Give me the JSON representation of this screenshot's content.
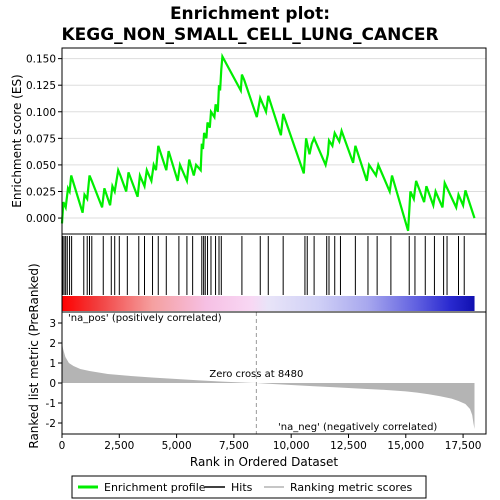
{
  "title_line1": "Enrichment plot:",
  "title_line2": "KEGG_NON_SMALL_CELL_LUNG_CANCER",
  "colors": {
    "es_line": "#00ee00",
    "hits": "#000000",
    "metric_fill": "#b4b4b4",
    "pos_label": "#cc0000",
    "neg_label": "#0000cc",
    "zero_line": "#999999",
    "frame": "#000000",
    "grid": "#dddddd"
  },
  "chart_data": [
    {
      "type": "line",
      "panel": "enrichment",
      "ylabel": "Enrichment score (ES)",
      "xlim": [
        0,
        18500
      ],
      "ylim": [
        -0.015,
        0.16
      ],
      "yticks": [
        0.0,
        0.025,
        0.05,
        0.075,
        0.1,
        0.125,
        0.15
      ],
      "ytick_labels": [
        "0.000",
        "0.025",
        "0.050",
        "0.075",
        "0.100",
        "0.125",
        "0.150"
      ],
      "grid": true,
      "series": [
        {
          "x": [
            0,
            60,
            160,
            260,
            330,
            400,
            900,
            980,
            1100,
            1200,
            1300,
            1750,
            1850,
            2100,
            2200,
            2300,
            2450,
            2550,
            2800,
            2900,
            3300,
            3400,
            3600,
            3700,
            3900,
            4000,
            4100,
            4200,
            4550,
            4650,
            5050,
            5150,
            5450,
            5550,
            5750,
            5850,
            6050,
            6100,
            6150,
            6200,
            6300,
            6350,
            6450,
            6500,
            6650,
            6700,
            6800,
            6850,
            6900,
            6950,
            7000,
            7800,
            7850,
            7950,
            8500,
            8650,
            8900,
            9000,
            9550,
            9650,
            10550,
            10650,
            10800,
            10900,
            11000,
            11500,
            11600,
            11650,
            11800,
            11900,
            12100,
            12200,
            12700,
            12800,
            13300,
            13400,
            13700,
            13800,
            14300,
            14400,
            15100,
            15200,
            15350,
            15450,
            15800,
            15900,
            16200,
            16300,
            16600,
            16700,
            17200,
            17300,
            17500,
            17600,
            18000
          ],
          "y": [
            -0.005,
            0.015,
            0.01,
            0.028,
            0.025,
            0.04,
            0.005,
            0.022,
            0.018,
            0.04,
            0.035,
            0.01,
            0.028,
            0.012,
            0.03,
            0.025,
            0.045,
            0.04,
            0.025,
            0.043,
            0.02,
            0.04,
            0.03,
            0.045,
            0.035,
            0.05,
            0.045,
            0.068,
            0.045,
            0.063,
            0.035,
            0.05,
            0.035,
            0.055,
            0.04,
            0.05,
            0.045,
            0.07,
            0.065,
            0.08,
            0.075,
            0.09,
            0.085,
            0.1,
            0.095,
            0.107,
            0.1,
            0.125,
            0.12,
            0.14,
            0.152,
            0.12,
            0.135,
            0.13,
            0.095,
            0.113,
            0.1,
            0.115,
            0.078,
            0.098,
            0.042,
            0.075,
            0.06,
            0.07,
            0.075,
            0.05,
            0.06,
            0.073,
            0.068,
            0.08,
            0.072,
            0.082,
            0.052,
            0.068,
            0.035,
            0.05,
            0.04,
            0.05,
            0.025,
            0.04,
            -0.012,
            0.025,
            0.018,
            0.035,
            0.015,
            0.03,
            0.012,
            0.025,
            0.01,
            0.033,
            0.01,
            0.022,
            0.012,
            0.026,
            0.0
          ]
        }
      ]
    },
    {
      "type": "bar",
      "panel": "hits",
      "xlim": [
        0,
        18500
      ],
      "hit_positions": [
        30,
        90,
        160,
        230,
        330,
        420,
        950,
        1100,
        1200,
        1300,
        1800,
        2150,
        2300,
        2500,
        2850,
        3350,
        3600,
        3950,
        4200,
        4550,
        5100,
        5450,
        5700,
        6100,
        6180,
        6250,
        6350,
        6500,
        6700,
        6850,
        6950,
        7850,
        8650,
        9000,
        9650,
        10600,
        10700,
        11000,
        11550,
        11650,
        11900,
        12150,
        12800,
        13350,
        13750,
        14350,
        15150,
        15400,
        15850,
        16250,
        16650,
        16800,
        17300,
        17550
      ]
    },
    {
      "type": "area",
      "panel": "ranked_metric",
      "ylabel": "Ranked list metric (PreRanked)",
      "xlabel": "Rank in Ordered Dataset",
      "xlim": [
        0,
        18500
      ],
      "ylim": [
        -2.55,
        3.55
      ],
      "yticks": [
        -2,
        -1,
        0,
        1,
        2,
        3
      ],
      "xticks": [
        0,
        2500,
        5000,
        7500,
        10000,
        12500,
        15000,
        17500
      ],
      "xtick_labels": [
        "0",
        "2,500",
        "5,000",
        "7,500",
        "10,000",
        "12,500",
        "15,000",
        "17,500"
      ],
      "x": [
        0,
        50,
        150,
        300,
        500,
        800,
        1200,
        2000,
        3000,
        4000,
        5000,
        6000,
        7000,
        8000,
        8480,
        9000,
        10000,
        11000,
        12000,
        13000,
        14000,
        15000,
        15500,
        16000,
        16500,
        17000,
        17300,
        17600,
        17800,
        17900,
        17950,
        18000
      ],
      "values": [
        2.0,
        1.7,
        1.3,
        1.0,
        0.85,
        0.7,
        0.6,
        0.45,
        0.35,
        0.27,
        0.2,
        0.13,
        0.07,
        0.02,
        0.0,
        -0.04,
        -0.1,
        -0.16,
        -0.22,
        -0.28,
        -0.34,
        -0.42,
        -0.48,
        -0.56,
        -0.66,
        -0.78,
        -0.9,
        -1.05,
        -1.3,
        -1.6,
        -2.0,
        -2.3
      ],
      "zero_cross_label": "Zero cross at 8480",
      "zero_cross": 8480,
      "pos_label": "'na_pos' (positively correlated)",
      "neg_label": "'na_neg' (negatively correlated)"
    }
  ],
  "legend": {
    "items": [
      {
        "label": "Enrichment profile",
        "kind": "line",
        "color": "#00ee00"
      },
      {
        "label": "Hits",
        "kind": "line",
        "color": "#000000"
      },
      {
        "label": "Ranking metric scores",
        "kind": "line",
        "color": "#b4b4b4"
      }
    ]
  }
}
